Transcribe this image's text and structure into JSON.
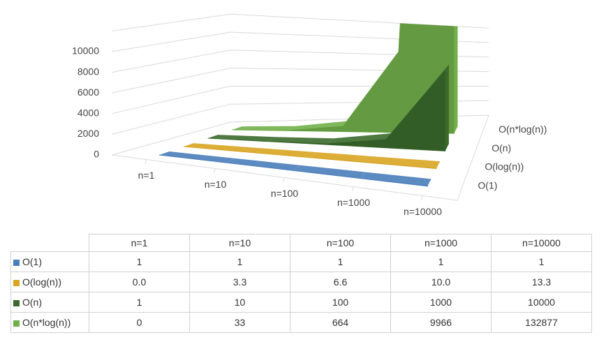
{
  "chart_data": {
    "type": "area3d",
    "categories": [
      "n=1",
      "n=10",
      "n=100",
      "n=1000",
      "n=10000"
    ],
    "series": [
      {
        "name": "O(1)",
        "color": "#4a7ebb",
        "values": [
          1,
          1,
          1,
          1,
          1
        ]
      },
      {
        "name": "O(log(n))",
        "color": "#d9a521",
        "values": [
          0,
          3.3,
          6.6,
          10,
          13.3
        ],
        "value_labels": [
          "0.0",
          "3.3",
          "6.6",
          "10.0",
          "13.3"
        ]
      },
      {
        "name": "O(n)",
        "color": "#3b6a2c",
        "values": [
          1,
          10,
          100,
          1000,
          10000
        ]
      },
      {
        "name": "O(n*log(n))",
        "color": "#72b04a",
        "values": [
          0,
          33,
          664,
          9966,
          132877
        ]
      }
    ],
    "ylim": [
      0,
      12000
    ],
    "yticks": [
      0,
      2000,
      4000,
      6000,
      8000,
      10000
    ],
    "grid": true,
    "data_table": true
  }
}
